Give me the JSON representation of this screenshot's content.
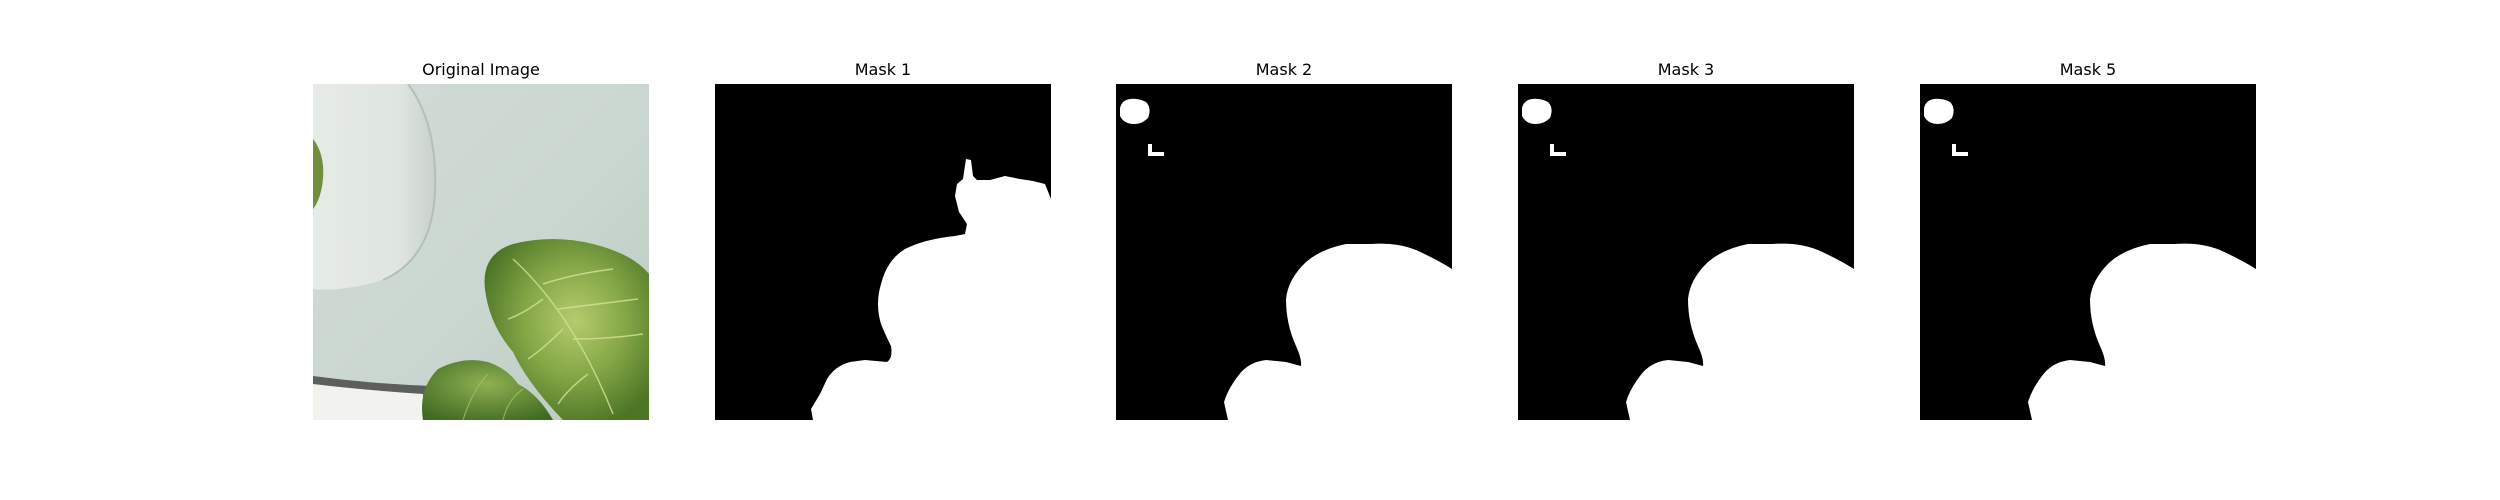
{
  "figure": {
    "panels": [
      {
        "title": "Original Image",
        "kind": "photo"
      },
      {
        "title": "Mask 1",
        "kind": "mask"
      },
      {
        "title": "Mask 2",
        "kind": "mask"
      },
      {
        "title": "Mask 3",
        "kind": "mask"
      },
      {
        "title": "Mask 5",
        "kind": "mask"
      }
    ]
  },
  "colors": {
    "mask_background": "#000000",
    "mask_foreground": "#ffffff",
    "wall": "#cdd8d2",
    "leaf_dark": "#4f7a2a",
    "leaf_light": "#a8c46a"
  }
}
